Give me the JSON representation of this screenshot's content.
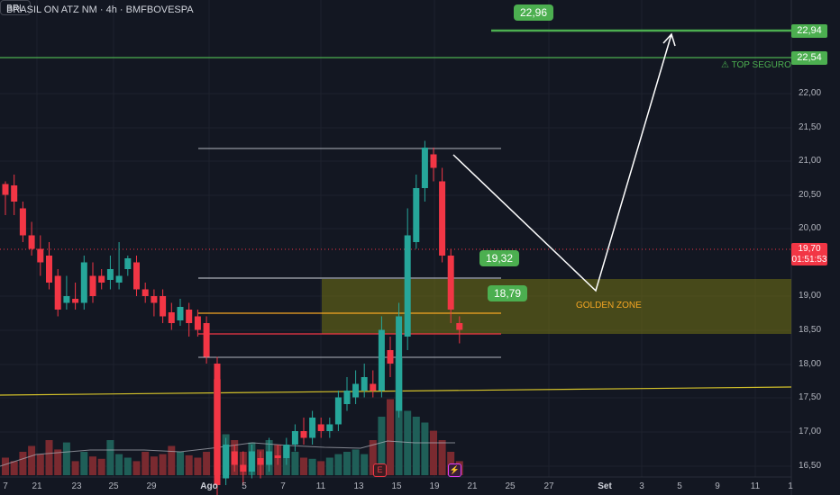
{
  "header": {
    "symbol": "BRASIL ON ATZ NM · 4h · BMFBOVESPA",
    "currency": "BRL"
  },
  "price_axis": [
    "22,00",
    "21,50",
    "21,00",
    "20,50",
    "20,00",
    "19,00",
    "18,50",
    "18,00",
    "17,50",
    "17,00",
    "16,50"
  ],
  "price_tags": {
    "upper": "22,94",
    "lower": "22,54"
  },
  "current_price": {
    "price": "19,70",
    "countdown": "01:51:53"
  },
  "callouts": {
    "target": "22,96",
    "resistance": "19,32",
    "support": "18,79"
  },
  "annotations": {
    "top": "⚠ TOP SEGURO",
    "zone": "GOLDEN ZONE"
  },
  "time_axis": [
    "7",
    "21",
    "23",
    "25",
    "29",
    "Ago",
    "5",
    "7",
    "11",
    "13",
    "15",
    "19",
    "21",
    "25",
    "27",
    "Set",
    "3",
    "5",
    "9",
    "11",
    "1"
  ],
  "volume_badges": {
    "earnings": "E",
    "dividend": "⚡"
  },
  "colors": {
    "up": "#26a69a",
    "down": "#f23645",
    "level": "#4caf50",
    "zone": "#f5a623",
    "background": "#131722"
  }
}
